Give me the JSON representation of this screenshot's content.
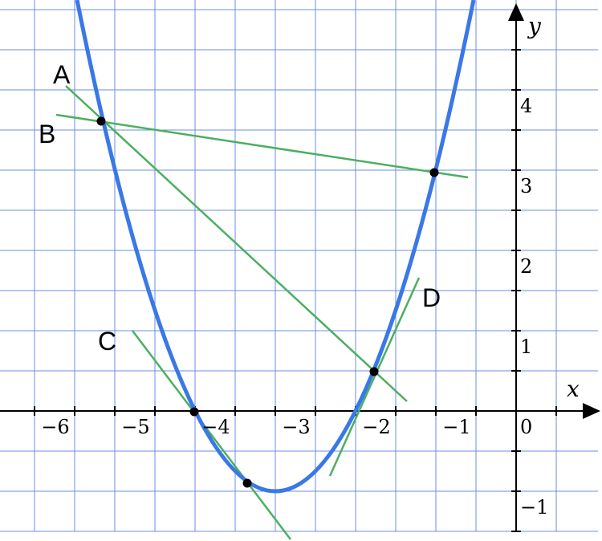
{
  "axes": {
    "x_label": "x",
    "y_label": "y",
    "origin_label": "0",
    "x_tick_labels": [
      "−6",
      "−5",
      "−4",
      "−3",
      "−2",
      "−1"
    ],
    "y_tick_labels": [
      "1",
      "2",
      "3",
      "4"
    ],
    "y_negative_tick_labels": [
      "−1"
    ]
  },
  "line_labels": [
    "A",
    "B",
    "C",
    "D"
  ]
}
